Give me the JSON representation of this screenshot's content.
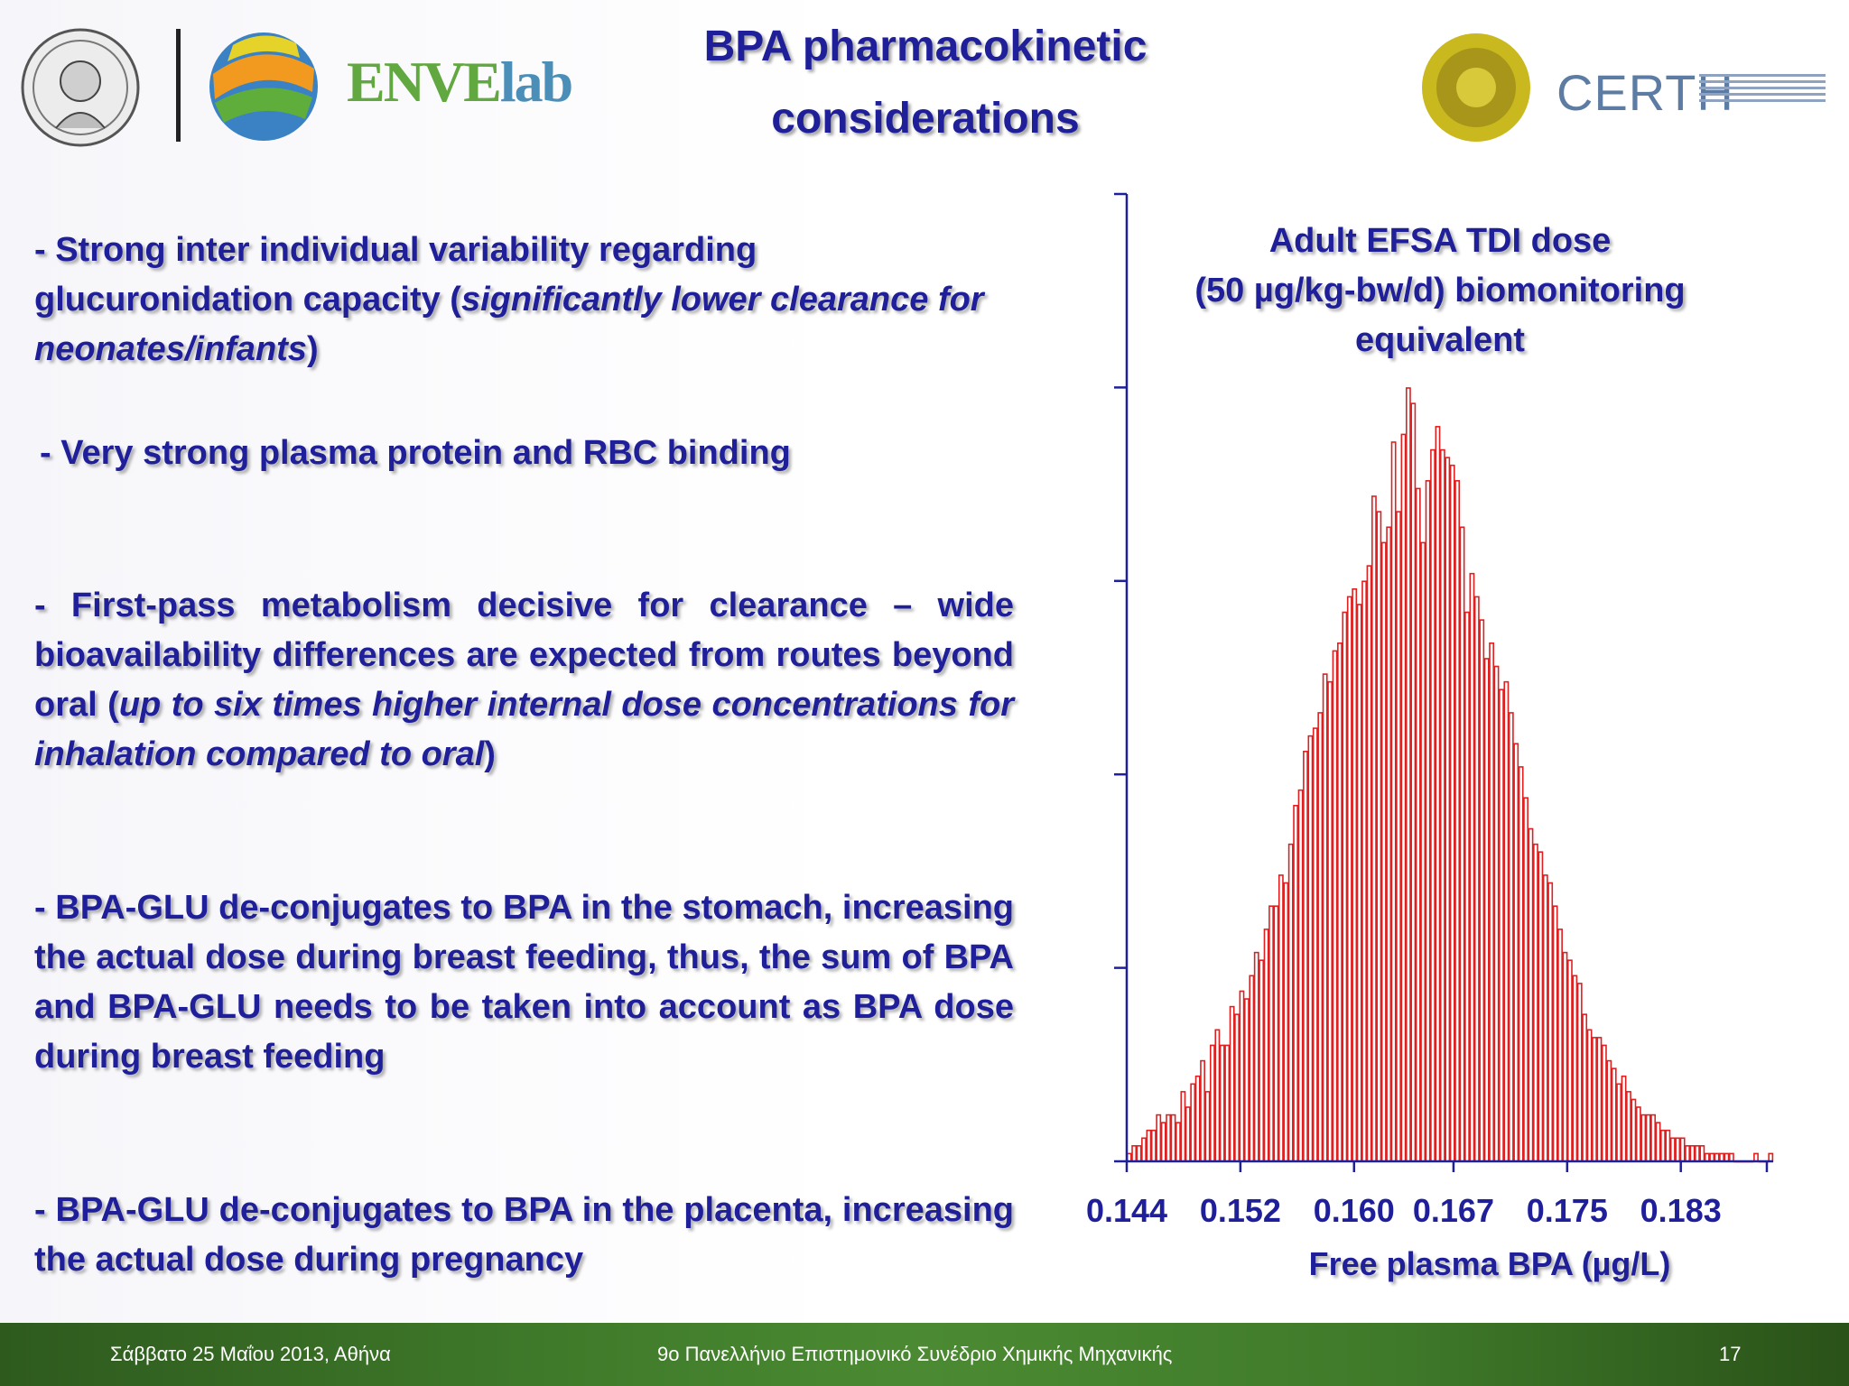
{
  "slide": {
    "title_line1": "BPA pharmacokinetic",
    "title_line2": "considerations"
  },
  "logos": {
    "envelab_part1": "ENVE",
    "envelab_part2": "lab",
    "certh": "CERTH"
  },
  "bullets": [
    {
      "text_before": "- Strong inter individual variability regarding glucuronidation capacity (",
      "emphasis": "significantly lower clearance for neonates/infants",
      "text_after": ")"
    },
    {
      "text": "- Very strong  plasma protein and RBC binding"
    },
    {
      "text_before": "- First-pass metabolism decisive for clearance – wide bioavailability differences are expected from routes beyond oral (",
      "emphasis": "up to six times higher internal dose concentrations for inhalation compared to oral",
      "text_after": ")"
    },
    {
      "text": "- BPA-GLU de-conjugates to BPA in the stomach, increasing the actual dose during breast feeding, thus, the sum of BPA and BPA-GLU needs to be taken into account as BPA dose during breast feeding"
    },
    {
      "text": "- BPA-GLU de-conjugates to BPA in the placenta, increasing the actual dose during pregnancy"
    }
  ],
  "chart_data": {
    "type": "bar",
    "title_lines": [
      "Adult EFSA TDI dose",
      "(50 µg/kg-bw/d) biomonitoring",
      "equivalent"
    ],
    "xlabel": "Free plasma BPA  (µg/L)",
    "ylabel": "",
    "x_tick_labels": [
      "0.144",
      "0.152",
      "0.160",
      "0.167",
      "0.175",
      "0.183"
    ],
    "x_tick_values": [
      0.144,
      0.152,
      0.16,
      0.167,
      0.175,
      0.183
    ],
    "xlim": [
      0.144,
      0.1895
    ],
    "ylim": [
      0,
      1
    ],
    "y_ticks_labeled": false,
    "bar_color": "#e02020",
    "axis_color": "#1f1f9a",
    "grid": false,
    "values_relative_to_max": [
      0.01,
      0.02,
      0.02,
      0.03,
      0.04,
      0.04,
      0.06,
      0.05,
      0.06,
      0.06,
      0.05,
      0.09,
      0.07,
      0.1,
      0.11,
      0.13,
      0.09,
      0.15,
      0.17,
      0.15,
      0.15,
      0.2,
      0.19,
      0.22,
      0.21,
      0.24,
      0.27,
      0.26,
      0.3,
      0.33,
      0.33,
      0.37,
      0.36,
      0.41,
      0.46,
      0.48,
      0.53,
      0.55,
      0.56,
      0.58,
      0.63,
      0.62,
      0.66,
      0.67,
      0.71,
      0.73,
      0.74,
      0.72,
      0.75,
      0.77,
      0.86,
      0.84,
      0.8,
      0.82,
      0.93,
      0.84,
      0.94,
      1.0,
      0.98,
      0.87,
      0.8,
      0.88,
      0.92,
      0.95,
      0.92,
      0.91,
      0.9,
      0.88,
      0.82,
      0.71,
      0.76,
      0.73,
      0.7,
      0.65,
      0.67,
      0.64,
      0.61,
      0.62,
      0.58,
      0.54,
      0.51,
      0.47,
      0.43,
      0.41,
      0.4,
      0.37,
      0.36,
      0.33,
      0.3,
      0.27,
      0.26,
      0.24,
      0.23,
      0.19,
      0.17,
      0.16,
      0.16,
      0.15,
      0.13,
      0.12,
      0.1,
      0.11,
      0.09,
      0.08,
      0.07,
      0.06,
      0.06,
      0.06,
      0.05,
      0.04,
      0.04,
      0.03,
      0.03,
      0.03,
      0.02,
      0.02,
      0.02,
      0.02,
      0.01,
      0.01,
      0.01,
      0.01,
      0.01,
      0.01,
      0.0,
      0.0,
      0.0,
      0.0,
      0.01,
      0.0,
      0.0,
      0.01
    ]
  },
  "footer": {
    "date": "Σάββατο 25 Μαΐου 2013, Αθήνα",
    "event": "9ο Πανελλήνιο Επιστημονικό Συνέδριο Χημικής Μηχανικής",
    "page": "17"
  }
}
